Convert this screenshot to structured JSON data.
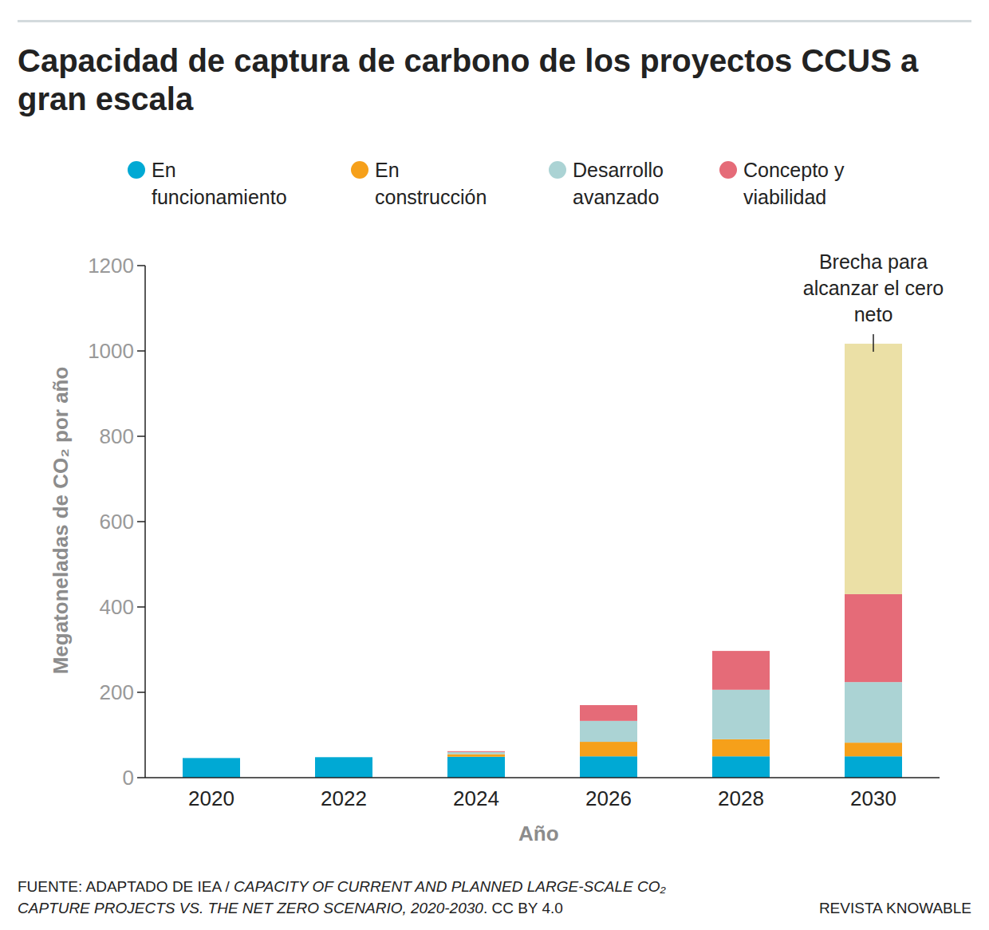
{
  "chart_data": {
    "type": "bar",
    "stacked": true,
    "title": "Capacidad de captura de carbono de los proyectos CCUS a gran escala",
    "x_label": "Año",
    "y_label": "Megatoneladas de CO₂ por año",
    "categories": [
      "2020",
      "2022",
      "2024",
      "2026",
      "2028",
      "2030"
    ],
    "series": [
      {
        "name": "En funcionamiento",
        "color": "#00a9d4",
        "values": [
          46,
          48,
          49,
          50,
          50,
          50
        ]
      },
      {
        "name": "En construcción",
        "color": "#f6a01a",
        "values": [
          null,
          null,
          6,
          34,
          40,
          32
        ]
      },
      {
        "name": "Desarrollo avanzado",
        "color": "#abd3d4",
        "values": [
          null,
          null,
          5,
          49,
          116,
          142
        ]
      },
      {
        "name": "Concepto y viabilidad",
        "color": "#e56b78",
        "values": [
          null,
          null,
          2,
          37,
          91,
          206
        ]
      }
    ],
    "gap": {
      "label": "Brecha para alcanzar el cero neto",
      "color": "#ebe0a6",
      "values": [
        null,
        null,
        null,
        null,
        null,
        587
      ]
    },
    "ylim": [
      0,
      1200
    ],
    "yticks": [
      0,
      200,
      400,
      600,
      800,
      1000,
      1200
    ],
    "grid": false,
    "legend": "top",
    "source": [
      "FUENTE: ADAPTADO DE IEA / ",
      "CAPACITY OF CURRENT AND PLANNED LARGE-SCALE CO₂ CAPTURE PROJECTS VS. THE NET ZERO SCENARIO, 2020-2030",
      ". CC BY 4.0"
    ],
    "credit": "REVISTA KNOWABLE"
  }
}
